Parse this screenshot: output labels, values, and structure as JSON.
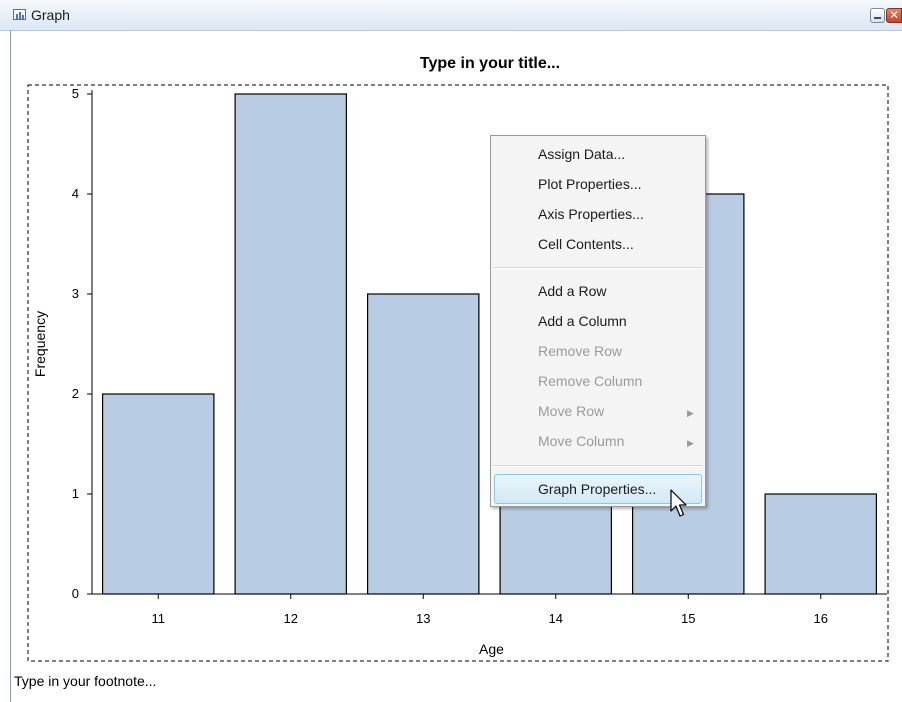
{
  "window": {
    "title": "Graph"
  },
  "graph": {
    "title": "Type in your title...",
    "footnote": "Type in your footnote..."
  },
  "chart_data": {
    "type": "bar",
    "categories": [
      "11",
      "12",
      "13",
      "14",
      "15",
      "16"
    ],
    "values": [
      2,
      5,
      3,
      3,
      4,
      1
    ],
    "xlabel": "Age",
    "ylabel": "Frequency",
    "ylim": [
      0,
      5
    ],
    "yticks": [
      0,
      1,
      2,
      3,
      4,
      5
    ],
    "bar_color": "#b8cce4",
    "grid": false
  },
  "context_menu": {
    "assign_data": "Assign Data...",
    "plot_properties": "Plot Properties...",
    "axis_properties": "Axis Properties...",
    "cell_contents": "Cell Contents...",
    "add_row": "Add a Row",
    "add_column": "Add a Column",
    "remove_row": "Remove Row",
    "remove_column": "Remove Column",
    "move_row": "Move Row",
    "move_column": "Move Column",
    "graph_properties": "Graph Properties..."
  }
}
